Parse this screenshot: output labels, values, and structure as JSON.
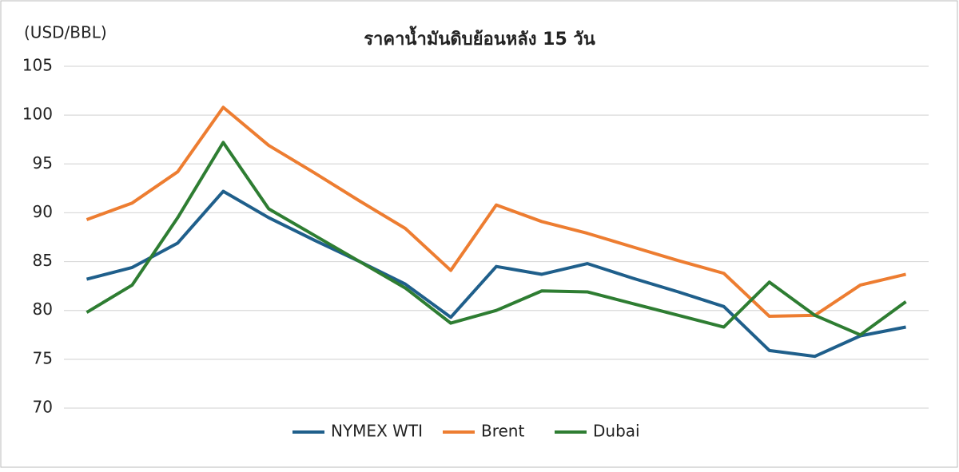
{
  "chart_data": {
    "type": "line",
    "title": "ราคาน้ำมันดิบย้อนหลัง 15 วัน",
    "y_label": "(USD/BBL)",
    "categories": [
      null,
      null,
      null,
      null,
      null,
      null,
      null,
      null,
      null,
      null,
      null,
      null,
      null,
      null,
      null,
      null,
      null,
      null,
      null
    ],
    "series": [
      {
        "name": "NYMEX WTI",
        "color": "#1f5f8b",
        "values": [
          83.2,
          84.4,
          86.9,
          92.2,
          89.5,
          87.2,
          85.0,
          82.7,
          79.3,
          84.5,
          83.7,
          84.8,
          83.3,
          81.9,
          80.4,
          75.9,
          75.3,
          77.4,
          78.3
        ]
      },
      {
        "name": "Brent",
        "color": "#ed7d31",
        "values": [
          89.3,
          91.0,
          94.2,
          100.8,
          96.9,
          94.1,
          91.2,
          88.4,
          84.1,
          90.8,
          89.1,
          87.9,
          86.5,
          85.1,
          83.8,
          79.4,
          79.5,
          82.6,
          83.7
        ]
      },
      {
        "name": "Dubai",
        "color": "#2e7d32",
        "values": [
          79.8,
          82.6,
          89.5,
          97.2,
          90.4,
          87.7,
          85.0,
          82.3,
          78.7,
          80.0,
          82.0,
          81.9,
          80.7,
          79.5,
          78.3,
          82.9,
          79.5,
          77.5,
          80.9
        ]
      }
    ],
    "ylim": [
      70,
      105
    ],
    "yticks": [
      70,
      75,
      80,
      85,
      90,
      95,
      100,
      105
    ],
    "grid": true,
    "legend": "bottom"
  }
}
